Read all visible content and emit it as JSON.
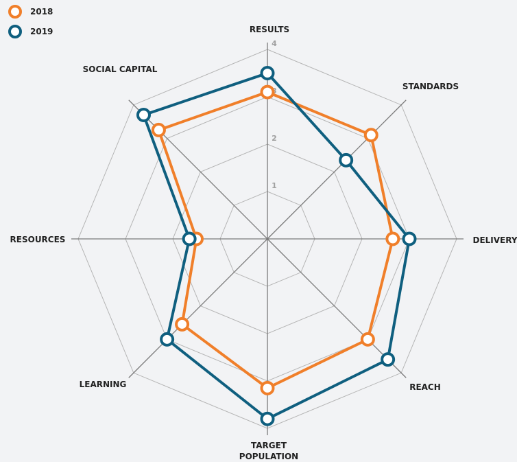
{
  "chart_data": {
    "type": "radar",
    "categories": [
      "RESULTS",
      "STANDARDS",
      "DELIVERY",
      "REACH",
      "TARGET POPULATION",
      "LEARNING",
      "RESOURCES",
      "SOCIAL CAPITAL"
    ],
    "series": [
      {
        "name": "2018",
        "color": "#f07f2a",
        "values": [
          3.1,
          3.1,
          2.65,
          3.0,
          3.15,
          2.55,
          1.5,
          3.25
        ]
      },
      {
        "name": "2019",
        "color": "#0f5f7f",
        "values": [
          3.5,
          2.35,
          3.0,
          3.6,
          3.8,
          3.0,
          1.65,
          3.7
        ]
      }
    ],
    "ylim": [
      0,
      4
    ],
    "yticks": [
      1,
      2,
      3,
      4
    ],
    "grid": true,
    "legend": "upper left"
  }
}
